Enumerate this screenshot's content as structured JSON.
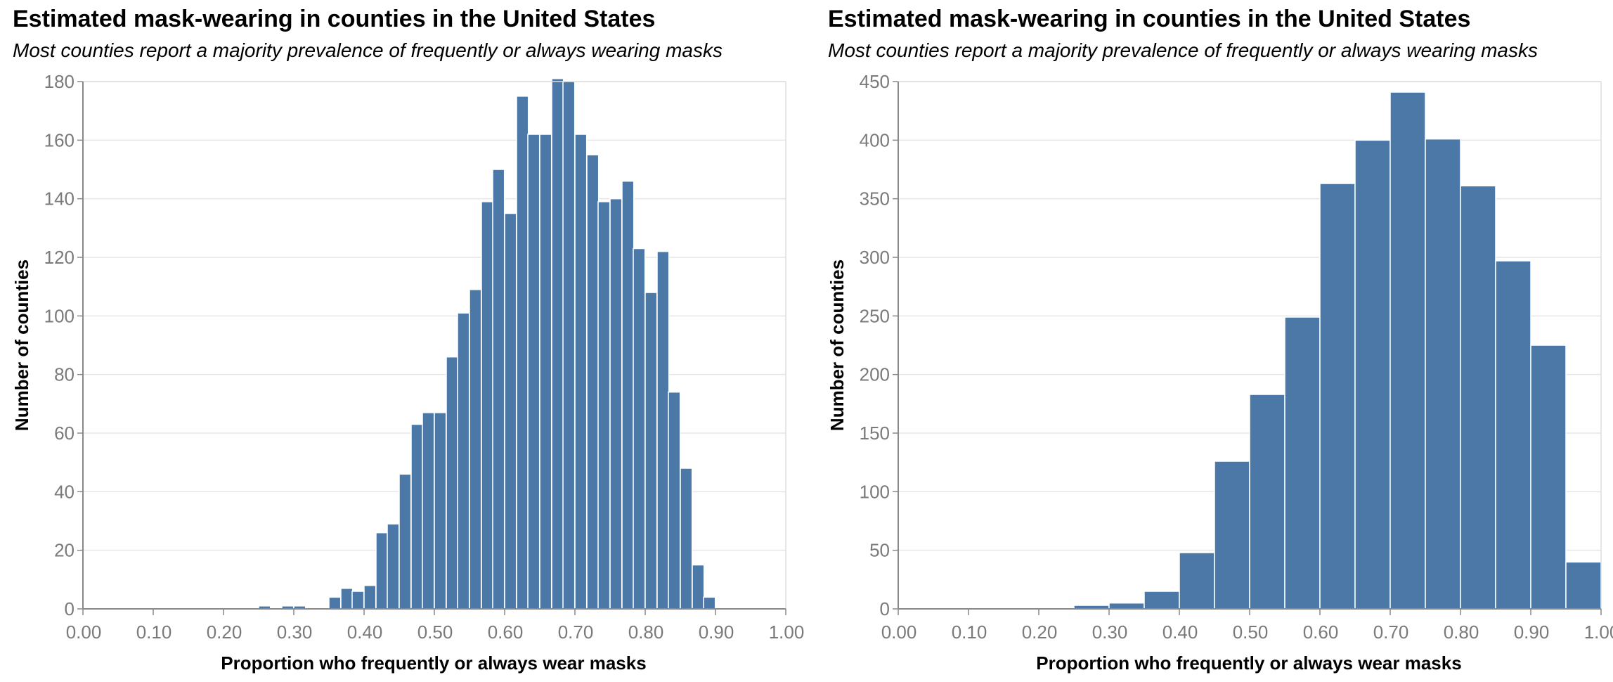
{
  "chart_data": [
    {
      "type": "bar",
      "title": "Estimated mask-wearing in counties in the United States",
      "subtitle": "Most counties report a majority prevalence of frequently or always wearing masks",
      "xlabel": "Proportion who frequently or always wear masks",
      "ylabel": "Number of counties",
      "xlim": [
        0,
        1
      ],
      "ylim": [
        0,
        180
      ],
      "xticks": [
        "0.00",
        "0.10",
        "0.20",
        "0.30",
        "0.40",
        "0.50",
        "0.60",
        "0.70",
        "0.80",
        "0.90",
        "1.00"
      ],
      "yticks": [
        "0",
        "20",
        "40",
        "60",
        "80",
        "100",
        "120",
        "140",
        "160",
        "180"
      ],
      "grid": true,
      "bin_width": 0.0167,
      "color": "#4c78a8",
      "bins": [
        {
          "x": 0.25,
          "count": 1
        },
        {
          "x": 0.283,
          "count": 1
        },
        {
          "x": 0.3,
          "count": 1
        },
        {
          "x": 0.35,
          "count": 4
        },
        {
          "x": 0.367,
          "count": 7
        },
        {
          "x": 0.383,
          "count": 6
        },
        {
          "x": 0.4,
          "count": 8
        },
        {
          "x": 0.417,
          "count": 26
        },
        {
          "x": 0.433,
          "count": 29
        },
        {
          "x": 0.45,
          "count": 46
        },
        {
          "x": 0.467,
          "count": 63
        },
        {
          "x": 0.483,
          "count": 67
        },
        {
          "x": 0.5,
          "count": 67
        },
        {
          "x": 0.517,
          "count": 86
        },
        {
          "x": 0.533,
          "count": 101
        },
        {
          "x": 0.55,
          "count": 109
        },
        {
          "x": 0.567,
          "count": 139
        },
        {
          "x": 0.583,
          "count": 150
        },
        {
          "x": 0.6,
          "count": 135
        },
        {
          "x": 0.617,
          "count": 175
        },
        {
          "x": 0.633,
          "count": 162
        },
        {
          "x": 0.65,
          "count": 162
        },
        {
          "x": 0.667,
          "count": 181
        },
        {
          "x": 0.683,
          "count": 180
        },
        {
          "x": 0.7,
          "count": 162
        },
        {
          "x": 0.717,
          "count": 155
        },
        {
          "x": 0.733,
          "count": 139
        },
        {
          "x": 0.75,
          "count": 140
        },
        {
          "x": 0.767,
          "count": 146
        },
        {
          "x": 0.783,
          "count": 123
        },
        {
          "x": 0.8,
          "count": 108
        },
        {
          "x": 0.817,
          "count": 122
        },
        {
          "x": 0.833,
          "count": 74
        },
        {
          "x": 0.85,
          "count": 48
        },
        {
          "x": 0.867,
          "count": 15
        },
        {
          "x": 0.883,
          "count": 4
        }
      ]
    },
    {
      "type": "bar",
      "title": "Estimated mask-wearing in counties in the United States",
      "subtitle": "Most counties report a majority prevalence of frequently or always wearing masks",
      "xlabel": "Proportion who frequently or always wear masks",
      "ylabel": "Number of counties",
      "xlim": [
        0,
        1
      ],
      "ylim": [
        0,
        450
      ],
      "xticks": [
        "0.00",
        "0.10",
        "0.20",
        "0.30",
        "0.40",
        "0.50",
        "0.60",
        "0.70",
        "0.80",
        "0.90",
        "1.00"
      ],
      "yticks": [
        "0",
        "50",
        "100",
        "150",
        "200",
        "250",
        "300",
        "350",
        "400",
        "450"
      ],
      "grid": true,
      "bin_width": 0.05,
      "color": "#4c78a8",
      "bins": [
        {
          "x": 0.25,
          "count": 3
        },
        {
          "x": 0.3,
          "count": 5
        },
        {
          "x": 0.35,
          "count": 15
        },
        {
          "x": 0.4,
          "count": 48
        },
        {
          "x": 0.45,
          "count": 126
        },
        {
          "x": 0.5,
          "count": 183
        },
        {
          "x": 0.55,
          "count": 249
        },
        {
          "x": 0.6,
          "count": 363
        },
        {
          "x": 0.65,
          "count": 400
        },
        {
          "x": 0.7,
          "count": 441
        },
        {
          "x": 0.75,
          "count": 401
        },
        {
          "x": 0.8,
          "count": 361
        },
        {
          "x": 0.85,
          "count": 297
        },
        {
          "x": 0.9,
          "count": 225
        },
        {
          "x": 0.95,
          "count": 40
        }
      ]
    }
  ]
}
